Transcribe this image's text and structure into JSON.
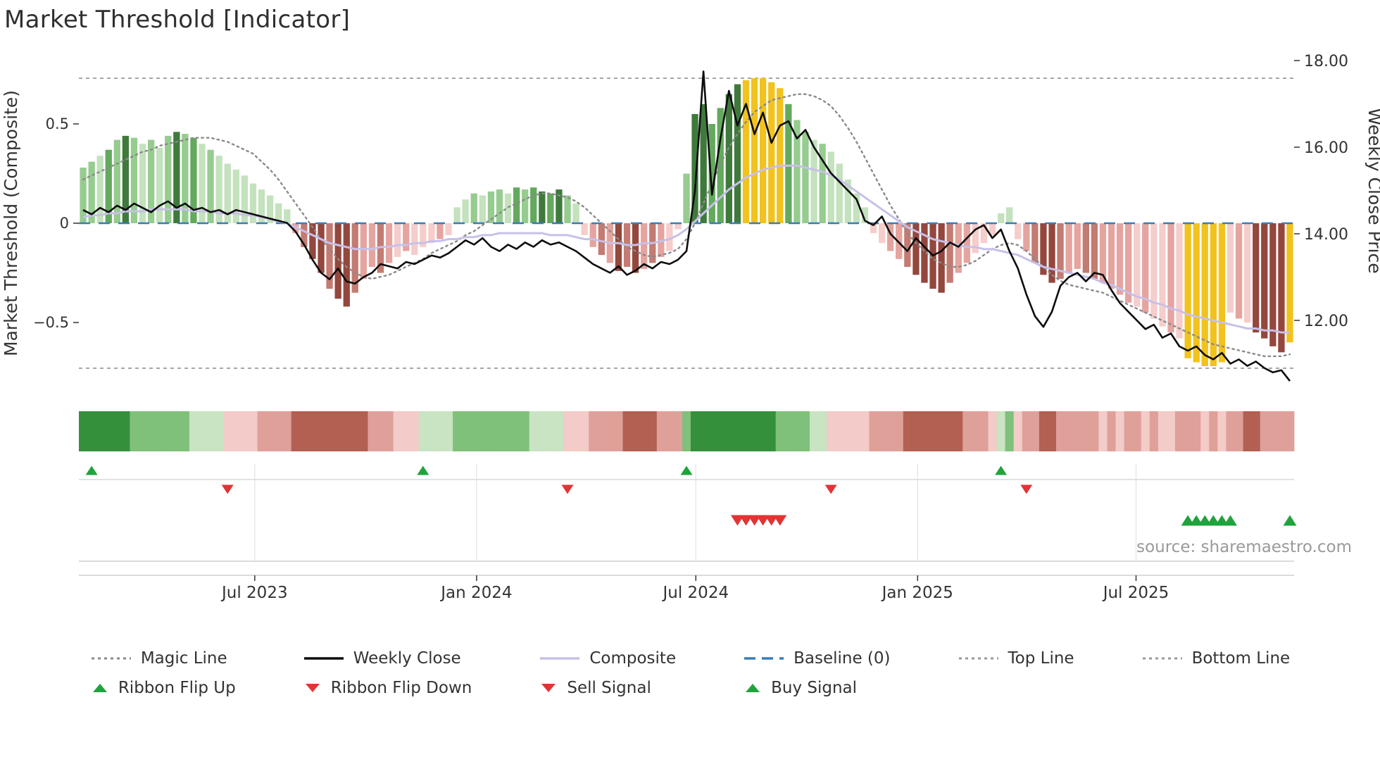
{
  "title": "Market Threshold [Indicator]",
  "source": "source: sharemaestro.com",
  "chart_data": {
    "type": "combo (indicator bars + weekly close line + composite line + magic line + signal ribbon)",
    "frequency_hint": "weekly",
    "left_axis": {
      "label": "Market Threshold (Composite)",
      "tick_labels": [
        "0.5",
        "0",
        "−0.5"
      ],
      "tick_values": [
        0.5,
        0,
        -0.5
      ],
      "range": [
        -0.85,
        0.85
      ],
      "baseline": 0,
      "top_line": 0.73,
      "bottom_line": -0.73
    },
    "right_axis": {
      "label": "Weekly Close Price",
      "tick_labels": [
        "18.00",
        "16.00",
        "14.00",
        "12.00"
      ],
      "tick_values": [
        18,
        16,
        14,
        12
      ],
      "range": [
        10.1,
        18.2
      ]
    },
    "x_ticks": [
      {
        "label": "Jul 2023",
        "week": 20.2
      },
      {
        "label": "Jan 2024",
        "week": 46.3
      },
      {
        "label": "Jul 2024",
        "week": 72.1
      },
      {
        "label": "Jan 2025",
        "week": 98.2
      },
      {
        "label": "Jul 2025",
        "week": 123.9
      }
    ],
    "bars": {
      "values": [
        0.28,
        0.31,
        0.34,
        0.37,
        0.42,
        0.44,
        0.43,
        0.4,
        0.42,
        0.38,
        0.44,
        0.46,
        0.45,
        0.43,
        0.4,
        0.37,
        0.34,
        0.3,
        0.27,
        0.24,
        0.2,
        0.17,
        0.14,
        0.1,
        0.07,
        -0.05,
        -0.12,
        -0.18,
        -0.25,
        -0.33,
        -0.38,
        -0.42,
        -0.35,
        -0.28,
        -0.22,
        -0.25,
        -0.2,
        -0.17,
        -0.14,
        -0.16,
        -0.12,
        -0.1,
        -0.08,
        -0.06,
        0.08,
        0.12,
        0.15,
        0.14,
        0.16,
        0.17,
        0.15,
        0.18,
        0.17,
        0.18,
        0.16,
        0.15,
        0.17,
        0.14,
        0.1,
        -0.06,
        -0.12,
        -0.16,
        -0.2,
        -0.24,
        -0.22,
        -0.25,
        -0.23,
        -0.2,
        -0.17,
        -0.14,
        -0.03,
        0.25,
        0.55,
        0.6,
        0.5,
        0.58,
        0.65,
        0.7,
        0.72,
        0.73,
        0.73,
        0.71,
        0.68,
        0.6,
        0.52,
        0.46,
        0.42,
        0.4,
        0.36,
        0.3,
        0.22,
        0.15,
        0.08,
        -0.05,
        -0.1,
        -0.14,
        -0.18,
        -0.22,
        -0.26,
        -0.3,
        -0.33,
        -0.35,
        -0.3,
        -0.25,
        -0.2,
        -0.15,
        -0.1,
        -0.06,
        0.05,
        0.08,
        -0.08,
        -0.14,
        -0.2,
        -0.26,
        -0.3,
        -0.28,
        -0.25,
        -0.23,
        -0.25,
        -0.28,
        -0.3,
        -0.33,
        -0.36,
        -0.4,
        -0.42,
        -0.45,
        -0.48,
        -0.52,
        -0.55,
        -0.58,
        -0.68,
        -0.7,
        -0.72,
        -0.72,
        -0.7,
        -0.45,
        -0.48,
        -0.5,
        -0.55,
        -0.58,
        -0.62,
        -0.65,
        -0.6
      ],
      "colors": [
        "g2",
        "g2",
        "g1",
        "g3",
        "g2",
        "g4",
        "g2",
        "g1",
        "g2",
        "g1",
        "g2",
        "g4",
        "g2",
        "g3",
        "g1",
        "g2",
        "g1",
        "g1",
        "g1",
        "g1",
        "g1",
        "g1",
        "g1",
        "g1",
        "g1",
        "r2",
        "r3",
        "r4",
        "r4",
        "r3",
        "r4",
        "r4",
        "r3",
        "r2",
        "r2",
        "r3",
        "r2",
        "r1",
        "r2",
        "r1",
        "r1",
        "r1",
        "r2",
        "r1",
        "g1",
        "g1",
        "g2",
        "g1",
        "g2",
        "g2",
        "g1",
        "g3",
        "g2",
        "g3",
        "g4",
        "g3",
        "g4",
        "g2",
        "g1",
        "r1",
        "r2",
        "r3",
        "r2",
        "r4",
        "r3",
        "r4",
        "r2",
        "r3",
        "r2",
        "r1",
        "r1",
        "g2",
        "g4",
        "g4",
        "g3",
        "g3",
        "g4",
        "g4",
        "y",
        "y",
        "y",
        "y",
        "y",
        "g3",
        "g2",
        "g2",
        "g1",
        "g2",
        "g1",
        "g1",
        "g1",
        "g1",
        "g1",
        "r1",
        "r1",
        "r2",
        "r2",
        "r3",
        "r4",
        "r4",
        "r4",
        "r4",
        "r3",
        "r2",
        "r2",
        "r1",
        "r1",
        "r1",
        "g1",
        "g1",
        "r1",
        "r2",
        "r3",
        "r4",
        "r4",
        "r3",
        "r2",
        "r2",
        "r3",
        "r3",
        "r2",
        "r2",
        "r2",
        "r2",
        "r1",
        "r2",
        "r1",
        "r1",
        "r2",
        "r1",
        "y",
        "y",
        "y",
        "y",
        "y",
        "r1",
        "r2",
        "r1",
        "r4",
        "r4",
        "r4",
        "r4",
        "y"
      ]
    },
    "weekly_close": [
      14.55,
      14.45,
      14.6,
      14.5,
      14.65,
      14.55,
      14.7,
      14.6,
      14.5,
      14.65,
      14.75,
      14.6,
      14.7,
      14.55,
      14.6,
      14.5,
      14.55,
      14.45,
      14.55,
      14.5,
      14.45,
      14.4,
      14.35,
      14.3,
      14.25,
      14.05,
      13.75,
      13.4,
      13.1,
      12.95,
      13.2,
      12.9,
      12.85,
      13.0,
      13.1,
      13.3,
      13.25,
      13.2,
      13.35,
      13.3,
      13.4,
      13.5,
      13.45,
      13.55,
      13.7,
      13.85,
      13.75,
      13.9,
      13.7,
      13.6,
      13.75,
      13.65,
      13.8,
      13.7,
      13.85,
      13.75,
      13.8,
      13.7,
      13.6,
      13.45,
      13.3,
      13.2,
      13.1,
      13.25,
      13.05,
      13.15,
      13.3,
      13.2,
      13.35,
      13.3,
      13.4,
      13.6,
      15.0,
      17.75,
      14.9,
      16.2,
      17.3,
      16.5,
      17.0,
      16.3,
      16.8,
      16.1,
      16.5,
      16.6,
      16.2,
      16.4,
      16.0,
      15.7,
      15.4,
      15.2,
      15.0,
      14.8,
      14.3,
      14.2,
      14.4,
      14.0,
      13.8,
      13.6,
      13.9,
      13.7,
      13.5,
      13.6,
      13.8,
      13.7,
      13.9,
      14.1,
      14.2,
      13.9,
      14.1,
      13.6,
      13.2,
      12.6,
      12.1,
      11.85,
      12.2,
      12.8,
      13.0,
      13.1,
      12.9,
      13.1,
      13.05,
      12.7,
      12.4,
      12.2,
      12.0,
      11.8,
      11.9,
      11.6,
      11.7,
      11.4,
      11.3,
      11.4,
      11.2,
      11.1,
      11.25,
      11.0,
      11.1,
      10.95,
      11.05,
      10.9,
      10.8,
      10.85,
      10.6
    ],
    "composite_line": [
      0.03,
      0.04,
      0.04,
      0.05,
      0.05,
      0.06,
      0.06,
      0.06,
      0.07,
      0.07,
      0.07,
      0.07,
      0.07,
      0.06,
      0.06,
      0.06,
      0.05,
      0.05,
      0.05,
      0.04,
      0.04,
      0.03,
      0.02,
      0.01,
      0.0,
      -0.02,
      -0.04,
      -0.06,
      -0.08,
      -0.1,
      -0.11,
      -0.12,
      -0.13,
      -0.13,
      -0.13,
      -0.12,
      -0.12,
      -0.11,
      -0.11,
      -0.1,
      -0.1,
      -0.09,
      -0.09,
      -0.08,
      -0.08,
      -0.07,
      -0.07,
      -0.06,
      -0.06,
      -0.05,
      -0.05,
      -0.05,
      -0.05,
      -0.05,
      -0.05,
      -0.06,
      -0.06,
      -0.06,
      -0.07,
      -0.08,
      -0.08,
      -0.09,
      -0.1,
      -0.1,
      -0.11,
      -0.11,
      -0.1,
      -0.1,
      -0.09,
      -0.08,
      -0.06,
      -0.03,
      0.01,
      0.05,
      0.09,
      0.13,
      0.17,
      0.2,
      0.23,
      0.25,
      0.27,
      0.28,
      0.29,
      0.29,
      0.29,
      0.28,
      0.27,
      0.26,
      0.24,
      0.22,
      0.19,
      0.16,
      0.13,
      0.1,
      0.07,
      0.04,
      0.01,
      -0.02,
      -0.04,
      -0.06,
      -0.08,
      -0.09,
      -0.1,
      -0.11,
      -0.12,
      -0.12,
      -0.13,
      -0.13,
      -0.14,
      -0.15,
      -0.16,
      -0.18,
      -0.2,
      -0.22,
      -0.23,
      -0.24,
      -0.25,
      -0.26,
      -0.27,
      -0.28,
      -0.3,
      -0.31,
      -0.33,
      -0.35,
      -0.37,
      -0.38,
      -0.4,
      -0.41,
      -0.43,
      -0.44,
      -0.46,
      -0.47,
      -0.48,
      -0.49,
      -0.5,
      -0.51,
      -0.52,
      -0.53,
      -0.53,
      -0.54,
      -0.54,
      -0.55,
      -0.55
    ],
    "magic_line": [
      0.22,
      0.24,
      0.26,
      0.28,
      0.3,
      0.32,
      0.34,
      0.36,
      0.37,
      0.39,
      0.4,
      0.41,
      0.42,
      0.43,
      0.43,
      0.43,
      0.42,
      0.41,
      0.39,
      0.37,
      0.35,
      0.31,
      0.27,
      0.22,
      0.16,
      0.1,
      0.04,
      -0.02,
      -0.08,
      -0.13,
      -0.18,
      -0.22,
      -0.25,
      -0.27,
      -0.28,
      -0.27,
      -0.26,
      -0.24,
      -0.22,
      -0.2,
      -0.18,
      -0.15,
      -0.13,
      -0.11,
      -0.09,
      -0.06,
      -0.04,
      -0.01,
      0.02,
      0.05,
      0.08,
      0.1,
      0.12,
      0.14,
      0.15,
      0.15,
      0.14,
      0.13,
      0.11,
      0.08,
      0.04,
      0.0,
      -0.04,
      -0.08,
      -0.12,
      -0.14,
      -0.16,
      -0.17,
      -0.16,
      -0.15,
      -0.13,
      -0.08,
      0.0,
      0.1,
      0.2,
      0.3,
      0.38,
      0.45,
      0.51,
      0.56,
      0.59,
      0.62,
      0.63,
      0.64,
      0.65,
      0.65,
      0.64,
      0.62,
      0.59,
      0.54,
      0.48,
      0.41,
      0.33,
      0.25,
      0.17,
      0.09,
      0.02,
      -0.05,
      -0.1,
      -0.14,
      -0.18,
      -0.2,
      -0.22,
      -0.22,
      -0.21,
      -0.19,
      -0.16,
      -0.13,
      -0.11,
      -0.1,
      -0.11,
      -0.14,
      -0.18,
      -0.22,
      -0.26,
      -0.29,
      -0.31,
      -0.32,
      -0.33,
      -0.34,
      -0.35,
      -0.37,
      -0.39,
      -0.41,
      -0.43,
      -0.45,
      -0.47,
      -0.49,
      -0.51,
      -0.53,
      -0.55,
      -0.57,
      -0.59,
      -0.61,
      -0.62,
      -0.63,
      -0.64,
      -0.65,
      -0.66,
      -0.67,
      -0.67,
      -0.67,
      -0.66
    ],
    "ribbon": [
      "G3",
      "G3",
      "G3",
      "G3",
      "G3",
      "G3",
      "G2",
      "G2",
      "G2",
      "G2",
      "G2",
      "G2",
      "G2",
      "G1",
      "G1",
      "G1",
      "G1",
      "R1",
      "R1",
      "R1",
      "R1",
      "R2",
      "R2",
      "R2",
      "R2",
      "R3",
      "R3",
      "R3",
      "R3",
      "R3",
      "R3",
      "R3",
      "R3",
      "R3",
      "R2",
      "R2",
      "R2",
      "R1",
      "R1",
      "R1",
      "G1",
      "G1",
      "G1",
      "G1",
      "G2",
      "G2",
      "G2",
      "G2",
      "G2",
      "G2",
      "G2",
      "G2",
      "G2",
      "G1",
      "G1",
      "G1",
      "G1",
      "R1",
      "R1",
      "R1",
      "R2",
      "R2",
      "R2",
      "R2",
      "R3",
      "R3",
      "R3",
      "R3",
      "R2",
      "R2",
      "R2",
      "G2",
      "G3",
      "G3",
      "G3",
      "G3",
      "G3",
      "G3",
      "G3",
      "G3",
      "G3",
      "G3",
      "G2",
      "G2",
      "G2",
      "G2",
      "G1",
      "G1",
      "R1",
      "R1",
      "R1",
      "R1",
      "R1",
      "R2",
      "R2",
      "R2",
      "R2",
      "R3",
      "R3",
      "R3",
      "R3",
      "R3",
      "R3",
      "R3",
      "R2",
      "R2",
      "R2",
      "R1",
      "G1",
      "G2",
      "R1",
      "R2",
      "R2",
      "R3",
      "R3",
      "R2",
      "R2",
      "R2",
      "R2",
      "R2",
      "R1",
      "R2",
      "R1",
      "R2",
      "R2",
      "R1",
      "R2",
      "R1",
      "R1",
      "R2",
      "R2",
      "R2",
      "R1",
      "R2",
      "R1",
      "R2",
      "R2",
      "R3",
      "R3",
      "R2",
      "R2",
      "R2",
      "R2"
    ],
    "signals": {
      "ribbon_flip_up": [
        1,
        40,
        71,
        108
      ],
      "ribbon_flip_down": [
        17,
        57,
        88,
        111
      ],
      "sell": [
        77,
        78,
        79,
        80,
        81,
        82
      ],
      "buy": [
        130,
        131,
        132,
        133,
        134,
        135,
        142
      ]
    },
    "palette": {
      "bar": {
        "g1": "#c3e2bd",
        "g2": "#96cc8f",
        "g3": "#63a95e",
        "g4": "#3f7a3c",
        "r1": "#f5cdca",
        "r2": "#e5a49f",
        "r3": "#c37b72",
        "r4": "#94473d",
        "y": "#f2c21d"
      },
      "ribbon": {
        "G1": "#c9e4c2",
        "G2": "#7fc07a",
        "G3": "#35903c",
        "R1": "#f3cbc8",
        "R2": "#dfa09a",
        "R3": "#b35f52"
      },
      "weekly_close": "#0d0d0d",
      "composite_line": "#c7c0e9",
      "magic_line": "#8a8a8a",
      "baseline": "#3c7cb5",
      "top_bottom_line": "#999999",
      "flip_up": "#1fa33c",
      "flip_down": "#e03535",
      "sell": "#e03535",
      "buy": "#1fa33c"
    }
  },
  "legend": {
    "rows": [
      [
        {
          "label": "Magic Line",
          "swatch": "line",
          "style": "dotted",
          "color": "#8a8a8a"
        },
        {
          "label": "Weekly Close",
          "swatch": "line",
          "style": "solid",
          "color": "#0d0d0d"
        },
        {
          "label": "Composite",
          "swatch": "line",
          "style": "solid",
          "color": "#c7c0e9"
        },
        {
          "label": "Baseline (0)",
          "swatch": "line",
          "style": "dashed",
          "color": "#3c7cb5"
        },
        {
          "label": "Top Line",
          "swatch": "line",
          "style": "dotted",
          "color": "#999999"
        },
        {
          "label": "Bottom Line",
          "swatch": "line",
          "style": "dotted",
          "color": "#999999"
        }
      ],
      [
        {
          "label": "Ribbon Flip Up",
          "swatch": "triangle-up",
          "color": "#1fa33c"
        },
        {
          "label": "Ribbon Flip Down",
          "swatch": "triangle-down",
          "color": "#e03535"
        },
        {
          "label": "Sell Signal",
          "swatch": "triangle-down",
          "color": "#e03535"
        },
        {
          "label": "Buy Signal",
          "swatch": "triangle-up",
          "color": "#1fa33c"
        }
      ]
    ]
  }
}
